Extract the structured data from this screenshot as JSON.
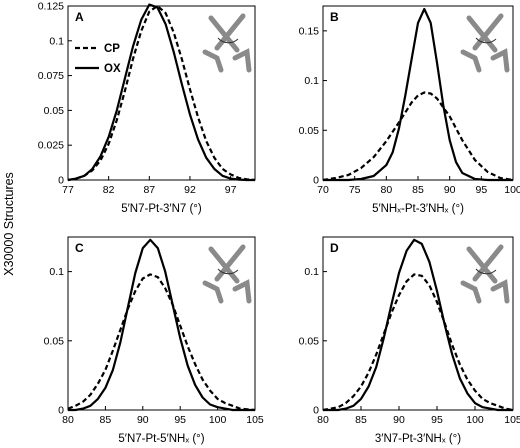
{
  "ylabel_shared": "X30000 Structures",
  "legend": {
    "items": [
      {
        "label": "CP",
        "style": "dashed"
      },
      {
        "label": "OX",
        "style": "solid"
      }
    ]
  },
  "chart_data": [
    {
      "panel": "A",
      "type": "line",
      "xlabel": "5′N7-Pt-3′N7 (°)",
      "xlim": [
        77,
        100
      ],
      "ylim": [
        0,
        0.125
      ],
      "xticks": [
        77,
        82,
        87,
        92,
        97
      ],
      "yticks": [
        0,
        0.025,
        0.05,
        0.075,
        0.1,
        0.125
      ],
      "yticklabels": [
        "0",
        "0.025",
        "0.05",
        "0.075",
        "0.1",
        "0.125"
      ],
      "series": [
        {
          "name": "CP",
          "style": "dashed",
          "x": [
            77,
            78,
            79,
            80,
            81,
            82,
            83,
            84,
            85,
            86,
            87,
            88,
            89,
            90,
            91,
            92,
            93,
            94,
            95,
            96,
            97,
            98,
            99,
            100
          ],
          "y": [
            0,
            0.001,
            0.003,
            0.007,
            0.014,
            0.026,
            0.043,
            0.064,
            0.087,
            0.107,
            0.121,
            0.125,
            0.12,
            0.106,
            0.087,
            0.065,
            0.045,
            0.028,
            0.016,
            0.008,
            0.004,
            0.0015,
            0.0005,
            0
          ]
        },
        {
          "name": "OX",
          "style": "solid",
          "x": [
            77,
            78,
            79,
            80,
            81,
            82,
            83,
            84,
            85,
            86,
            87,
            88,
            89,
            90,
            91,
            92,
            93,
            94,
            95,
            96,
            97,
            98,
            99,
            100
          ],
          "y": [
            0,
            0.001,
            0.003,
            0.008,
            0.017,
            0.031,
            0.05,
            0.073,
            0.096,
            0.115,
            0.126,
            0.124,
            0.112,
            0.092,
            0.069,
            0.047,
            0.029,
            0.016,
            0.008,
            0.003,
            0.001,
            0.0003,
            0,
            0
          ]
        }
      ]
    },
    {
      "panel": "B",
      "type": "line",
      "xlabel": "5′NHₓ-Pt-3′NHₓ (°)",
      "xlim": [
        70,
        100
      ],
      "ylim": [
        0,
        0.175
      ],
      "xticks": [
        70,
        75,
        80,
        85,
        90,
        95,
        100
      ],
      "yticks": [
        0,
        0.05,
        0.1,
        0.15
      ],
      "yticklabels": [
        "0",
        "0.05",
        "0.1",
        "0.15"
      ],
      "series": [
        {
          "name": "CP",
          "style": "dashed",
          "x": [
            70,
            72,
            74,
            76,
            78,
            80,
            82,
            84,
            85,
            86,
            87,
            88,
            90,
            92,
            94,
            96,
            98,
            100
          ],
          "y": [
            0,
            0.002,
            0.005,
            0.012,
            0.023,
            0.039,
            0.058,
            0.078,
            0.085,
            0.088,
            0.087,
            0.082,
            0.064,
            0.04,
            0.02,
            0.008,
            0.002,
            0
          ]
        },
        {
          "name": "OX",
          "style": "solid",
          "x": [
            70,
            74,
            76,
            78,
            80,
            81,
            82,
            83,
            84,
            85,
            86,
            87,
            88,
            89,
            90,
            91,
            92,
            94,
            96,
            100
          ],
          "y": [
            0,
            0,
            0.001,
            0.004,
            0.015,
            0.028,
            0.052,
            0.085,
            0.122,
            0.158,
            0.172,
            0.158,
            0.118,
            0.075,
            0.04,
            0.018,
            0.007,
            0.001,
            0,
            0
          ]
        }
      ]
    },
    {
      "panel": "C",
      "type": "line",
      "xlabel": "5′N7-Pt-5′NHₓ (°)",
      "xlim": [
        80,
        105
      ],
      "ylim": [
        0,
        0.125
      ],
      "xticks": [
        80,
        85,
        90,
        95,
        100,
        105
      ],
      "yticks": [
        0,
        0.05,
        0.1
      ],
      "yticklabels": [
        "0",
        "0.05",
        "0.1"
      ],
      "series": [
        {
          "name": "CP",
          "style": "dashed",
          "x": [
            80,
            81,
            82,
            83,
            84,
            85,
            86,
            87,
            88,
            89,
            90,
            91,
            92,
            93,
            94,
            95,
            96,
            97,
            98,
            99,
            100,
            101,
            102,
            103,
            104,
            105
          ],
          "y": [
            0.001,
            0.003,
            0.006,
            0.011,
            0.019,
            0.029,
            0.043,
            0.058,
            0.073,
            0.086,
            0.095,
            0.098,
            0.096,
            0.088,
            0.076,
            0.061,
            0.046,
            0.033,
            0.022,
            0.014,
            0.008,
            0.005,
            0.003,
            0.001,
            0.0005,
            0
          ]
        },
        {
          "name": "OX",
          "style": "solid",
          "x": [
            80,
            81,
            82,
            83,
            84,
            85,
            86,
            87,
            88,
            89,
            90,
            91,
            92,
            93,
            94,
            95,
            96,
            97,
            98,
            99,
            100,
            101,
            102,
            103,
            104,
            105
          ],
          "y": [
            0,
            0,
            0.001,
            0.003,
            0.008,
            0.016,
            0.029,
            0.049,
            0.074,
            0.099,
            0.117,
            0.123,
            0.117,
            0.1,
            0.076,
            0.052,
            0.032,
            0.018,
            0.009,
            0.004,
            0.002,
            0.001,
            0,
            0,
            0,
            0
          ]
        }
      ]
    },
    {
      "panel": "D",
      "type": "line",
      "xlabel": "3′N7-Pt-3′NHₓ (°)",
      "xlim": [
        80,
        105
      ],
      "ylim": [
        0,
        0.125
      ],
      "xticks": [
        80,
        85,
        90,
        95,
        100,
        105
      ],
      "yticks": [
        0,
        0.05,
        0.1
      ],
      "yticklabels": [
        "0",
        "0.05",
        "0.1"
      ],
      "series": [
        {
          "name": "CP",
          "style": "dashed",
          "x": [
            80,
            81,
            82,
            83,
            84,
            85,
            86,
            87,
            88,
            89,
            90,
            91,
            92,
            93,
            94,
            95,
            96,
            97,
            98,
            99,
            100,
            101,
            102,
            103,
            104,
            105
          ],
          "y": [
            0,
            0.001,
            0.002,
            0.005,
            0.01,
            0.017,
            0.027,
            0.04,
            0.055,
            0.07,
            0.083,
            0.093,
            0.098,
            0.097,
            0.09,
            0.078,
            0.063,
            0.047,
            0.033,
            0.022,
            0.014,
            0.008,
            0.005,
            0.003,
            0.001,
            0
          ]
        },
        {
          "name": "OX",
          "style": "solid",
          "x": [
            80,
            81,
            82,
            83,
            84,
            85,
            86,
            87,
            88,
            89,
            90,
            91,
            92,
            93,
            94,
            95,
            96,
            97,
            98,
            99,
            100,
            101,
            102,
            103,
            104,
            105
          ],
          "y": [
            0,
            0,
            0,
            0.001,
            0.003,
            0.008,
            0.017,
            0.031,
            0.052,
            0.076,
            0.099,
            0.115,
            0.123,
            0.12,
            0.107,
            0.086,
            0.062,
            0.04,
            0.023,
            0.012,
            0.005,
            0.002,
            0.001,
            0,
            0,
            0
          ]
        }
      ]
    }
  ]
}
